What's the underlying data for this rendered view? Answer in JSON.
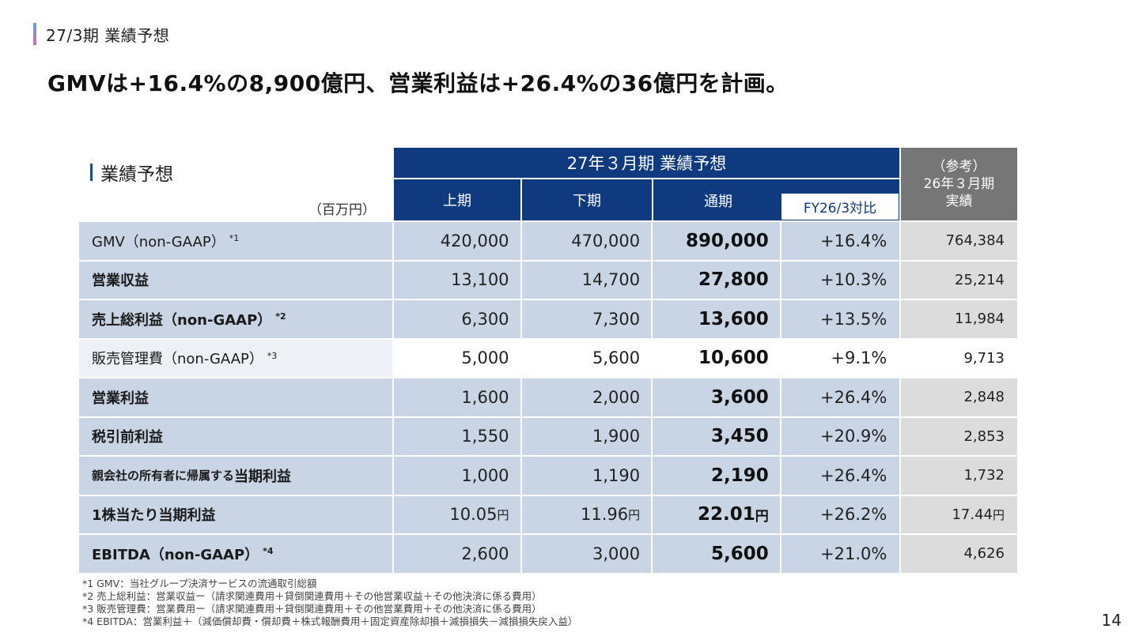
{
  "section": "27/3期 業績予想",
  "headline": "GMVは+16.4%の8,900億円、営業利益は+26.4%の36億円を計画。",
  "table": {
    "title": "業績予想",
    "unit": "（百万円）",
    "forecast_header": "27年３月期 業績予想",
    "col_h1": "上期",
    "col_h2": "下期",
    "col_full": "通期",
    "col_yoy": "FY26/3対比",
    "ref_line1": "（参考）",
    "ref_line2": "26年３月期",
    "ref_line3": "実績",
    "rows": [
      {
        "label": "GMV（non-GAAP）",
        "note": "*1",
        "h1": "420,000",
        "h2": "470,000",
        "full": "890,000",
        "yoy": "+16.4%",
        "ref": "764,384"
      },
      {
        "label": "営業収益",
        "note": "",
        "h1": "13,100",
        "h2": "14,700",
        "full": "27,800",
        "yoy": "+10.3%",
        "ref": "25,214"
      },
      {
        "label": "売上総利益（non-GAAP）",
        "note": "*2",
        "h1": "6,300",
        "h2": "7,300",
        "full": "13,600",
        "yoy": "+13.5%",
        "ref": "11,984"
      },
      {
        "label": "販売管理費（non-GAAP）",
        "note": "*3",
        "h1": "5,000",
        "h2": "5,600",
        "full": "10,600",
        "yoy": "+9.1%",
        "ref": "9,713"
      },
      {
        "label": "営業利益",
        "note": "",
        "h1": "1,600",
        "h2": "2,000",
        "full": "3,600",
        "yoy": "+26.4%",
        "ref": "2,848"
      },
      {
        "label": "税引前利益",
        "note": "",
        "h1": "1,550",
        "h2": "1,900",
        "full": "3,450",
        "yoy": "+20.9%",
        "ref": "2,853"
      },
      {
        "label_small": "親会社の所有者に帰属する",
        "label_big": "当期利益",
        "note": "",
        "h1": "1,000",
        "h2": "1,190",
        "full": "2,190",
        "yoy": "+26.4%",
        "ref": "1,732"
      },
      {
        "label": "1株当たり当期利益",
        "note": "",
        "h1": "10.05",
        "h2": "11.96",
        "full": "22.01",
        "yoy": "+26.2%",
        "ref": "17.44",
        "yen": "円"
      },
      {
        "label": "EBITDA（non-GAAP）",
        "note": "*4",
        "h1": "2,600",
        "h2": "3,000",
        "full": "5,600",
        "yoy": "+21.0%",
        "ref": "4,626"
      }
    ]
  },
  "notes": [
    "*1 GMV：当社グループ決済サービスの流通取引総額",
    "*2 売上総利益：営業収益ー（請求関連費用＋貸倒関連費用＋その他営業収益＋その他決済に係る費用）",
    "*3 販売管理費：営業費用ー（請求関連費用＋貸倒関連費用＋その他営業費用＋その他決済に係る費用）",
    "*4 EBITDA：営業利益＋（減価償却費・償却費＋株式報酬費用＋固定資産除却損＋減損損失－減損損失戻入益）"
  ],
  "page_number": "14"
}
